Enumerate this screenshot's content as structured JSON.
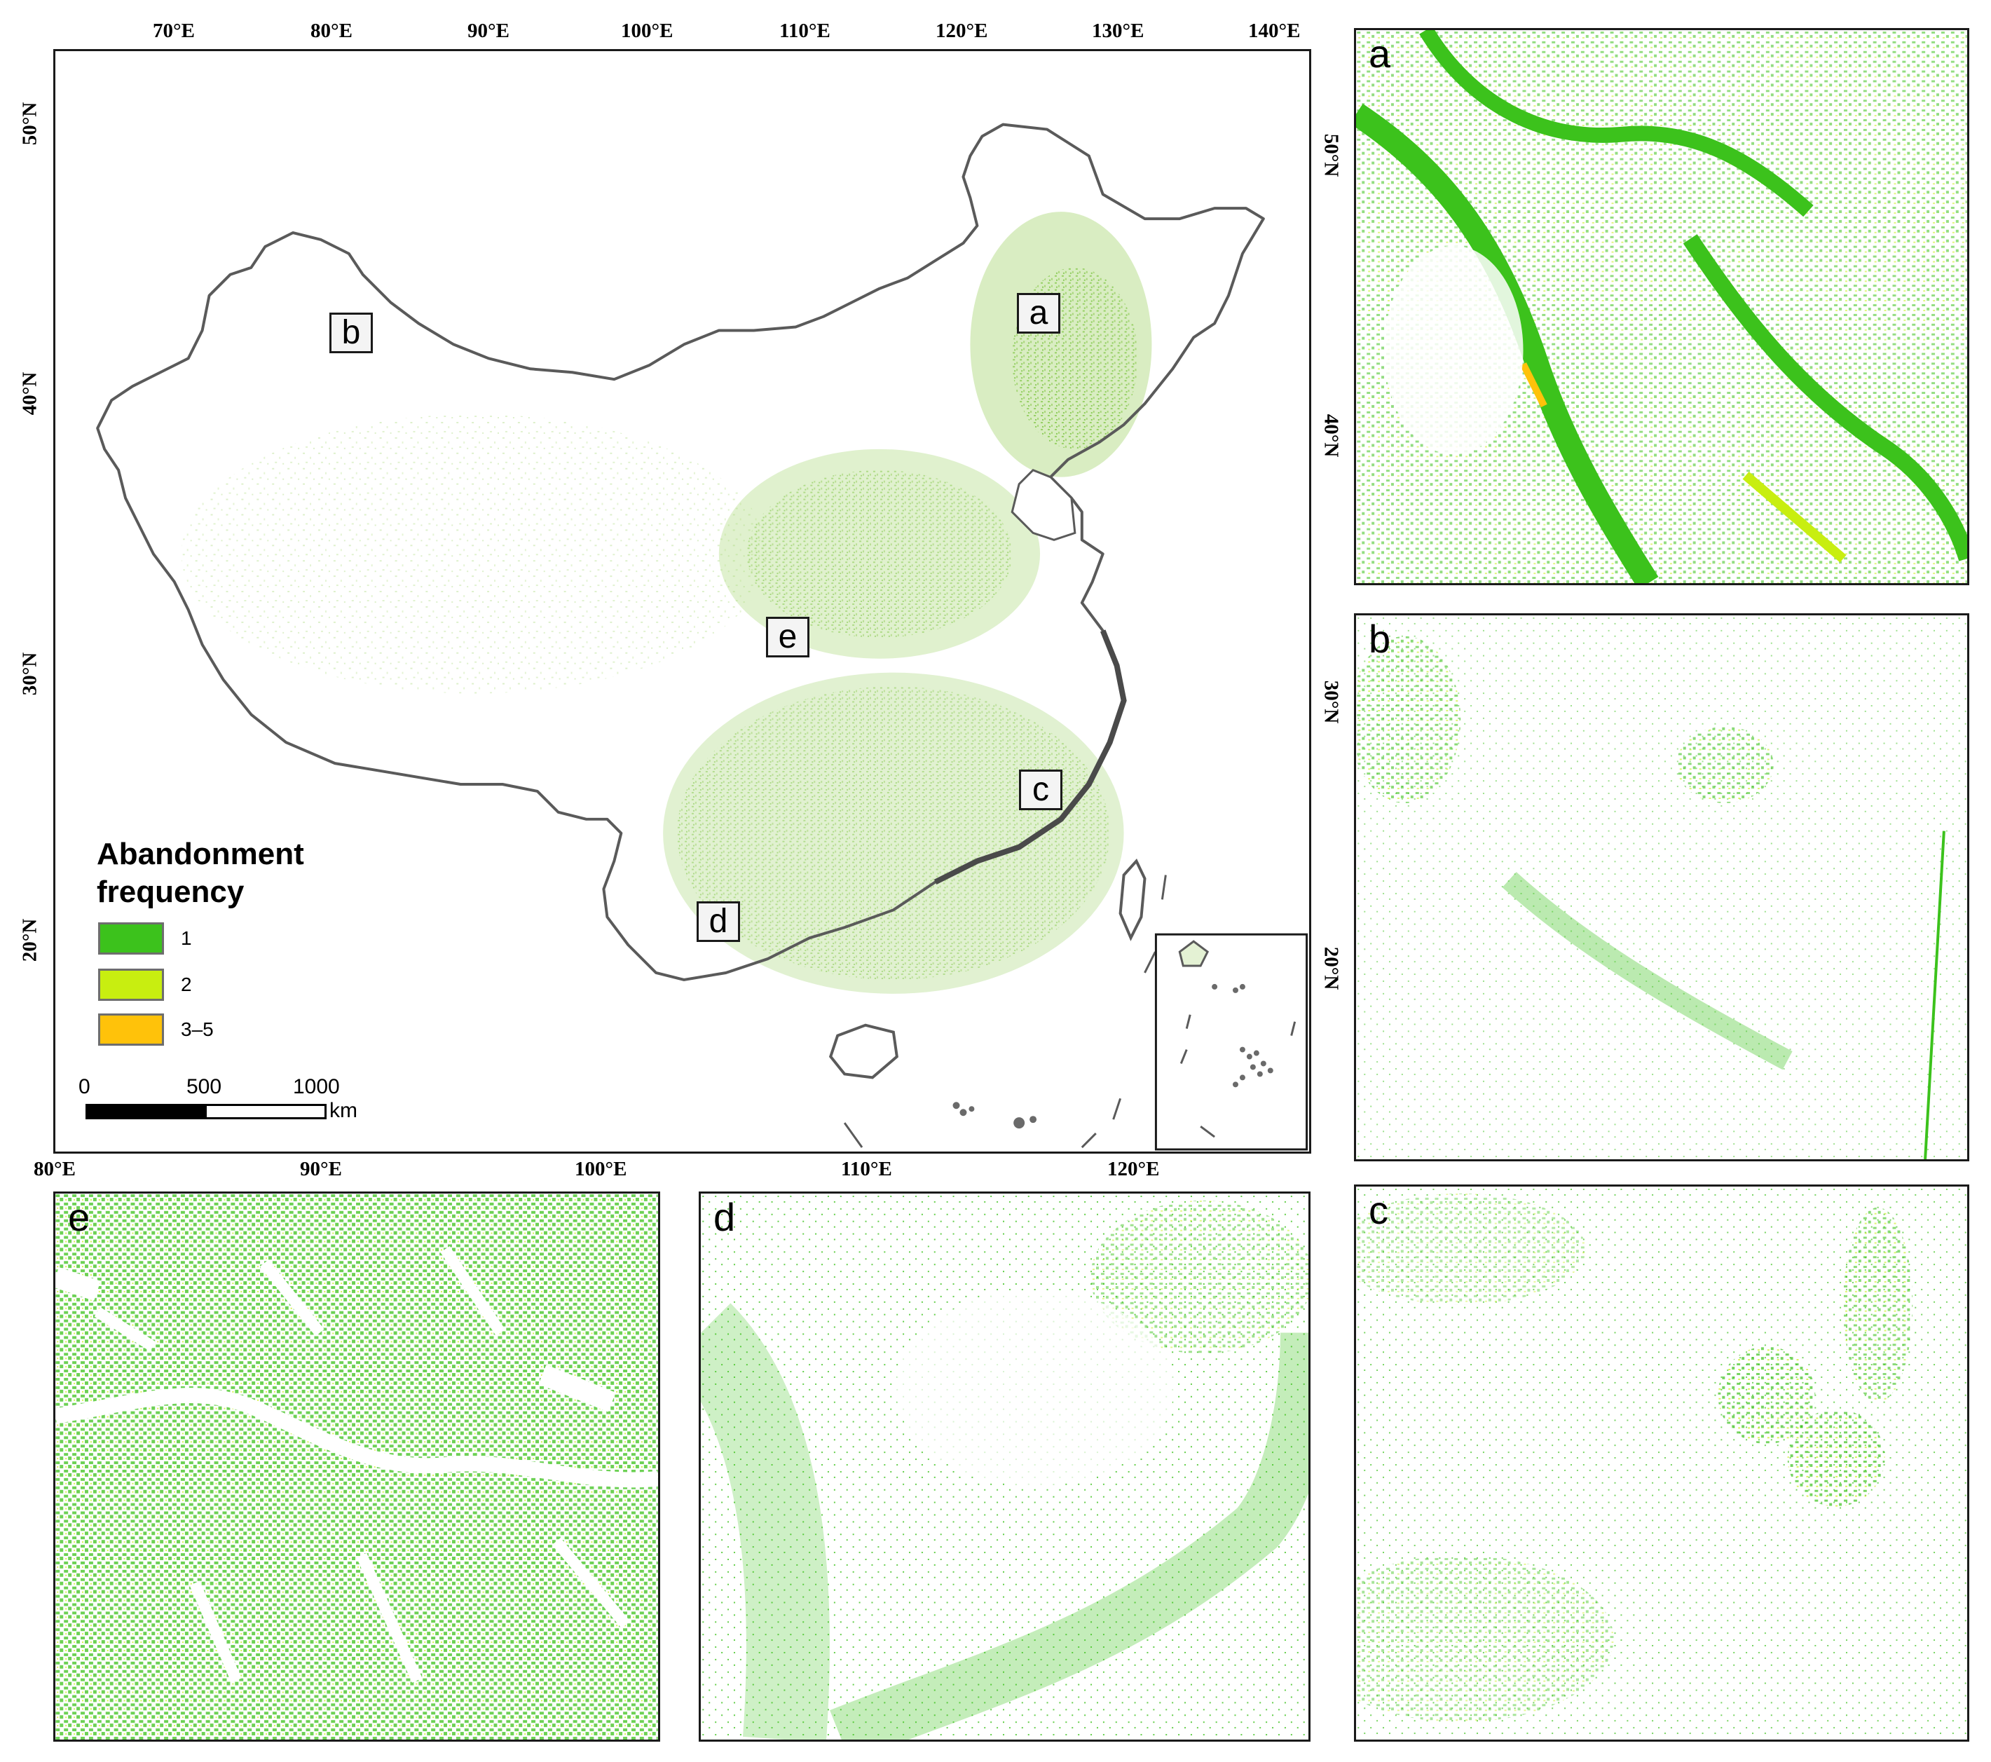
{
  "main_map": {
    "top_lon_labels": [
      "70°E",
      "80°E",
      "90°E",
      "100°E",
      "110°E",
      "120°E",
      "130°E",
      "140°E"
    ],
    "bottom_lon_labels": [
      "80°E",
      "90°E",
      "100°E",
      "110°E",
      "120°E"
    ],
    "left_lat_labels": [
      "50°N",
      "40°N",
      "30°N",
      "20°N"
    ],
    "right_lat_labels": [
      "50°N",
      "40°N",
      "30°N",
      "20°N"
    ],
    "region_markers": [
      "a",
      "b",
      "c",
      "d",
      "e"
    ]
  },
  "legend": {
    "title_line1": "Abandonment",
    "title_line2": "frequency",
    "items": [
      {
        "label": "1",
        "color": "#3cc21c"
      },
      {
        "label": "2",
        "color": "#c8ee10"
      },
      {
        "label": "3–5",
        "color": "#ffc20a"
      }
    ]
  },
  "scale_bar": {
    "labels": [
      "0",
      "500",
      "1000"
    ],
    "unit": "km"
  },
  "zoom_panels": [
    {
      "letter": "a"
    },
    {
      "letter": "b"
    },
    {
      "letter": "c"
    },
    {
      "letter": "d"
    },
    {
      "letter": "e"
    }
  ],
  "colors": {
    "freq1": "#3cc21c",
    "freq2": "#c8ee10",
    "freq3_5": "#ffc20a",
    "light_green": "#b9e08e",
    "boundary": "#5a5a5a"
  }
}
